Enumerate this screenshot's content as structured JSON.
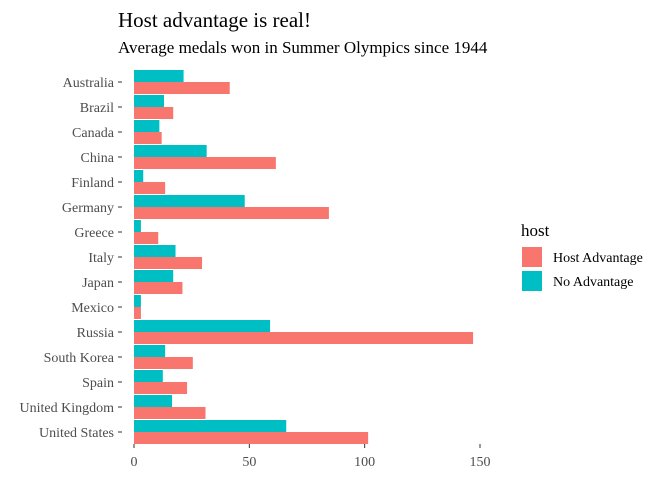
{
  "chart_data": {
    "type": "bar",
    "orientation": "horizontal",
    "title": "Host advantage is real!",
    "subtitle": "Average medals won in Summer Olympics since 1944",
    "xlabel": "",
    "ylabel": "",
    "xlim": [
      0,
      175
    ],
    "x_ticks": [
      0,
      50,
      100,
      150
    ],
    "grid": false,
    "legend": {
      "title": "host",
      "position": "right"
    },
    "categories": [
      "Australia",
      "Brazil",
      "Canada",
      "China",
      "Finland",
      "Germany",
      "Greece",
      "Italy",
      "Japan",
      "Mexico",
      "Russia",
      "South Korea",
      "Spain",
      "United Kingdom",
      "United States"
    ],
    "series": [
      {
        "name": "No Advantage",
        "color": "#00BFC4",
        "values": [
          21.5,
          13,
          11,
          31.5,
          4,
          48,
          3,
          18,
          17,
          3,
          59,
          13.5,
          12.5,
          16.5,
          66
        ]
      },
      {
        "name": "Host Advantage",
        "color": "#F8766D",
        "values": [
          41.5,
          17,
          12,
          61.5,
          13.5,
          84.5,
          10.5,
          29.5,
          21,
          3,
          147,
          25.5,
          23,
          31,
          101.5
        ]
      }
    ]
  }
}
